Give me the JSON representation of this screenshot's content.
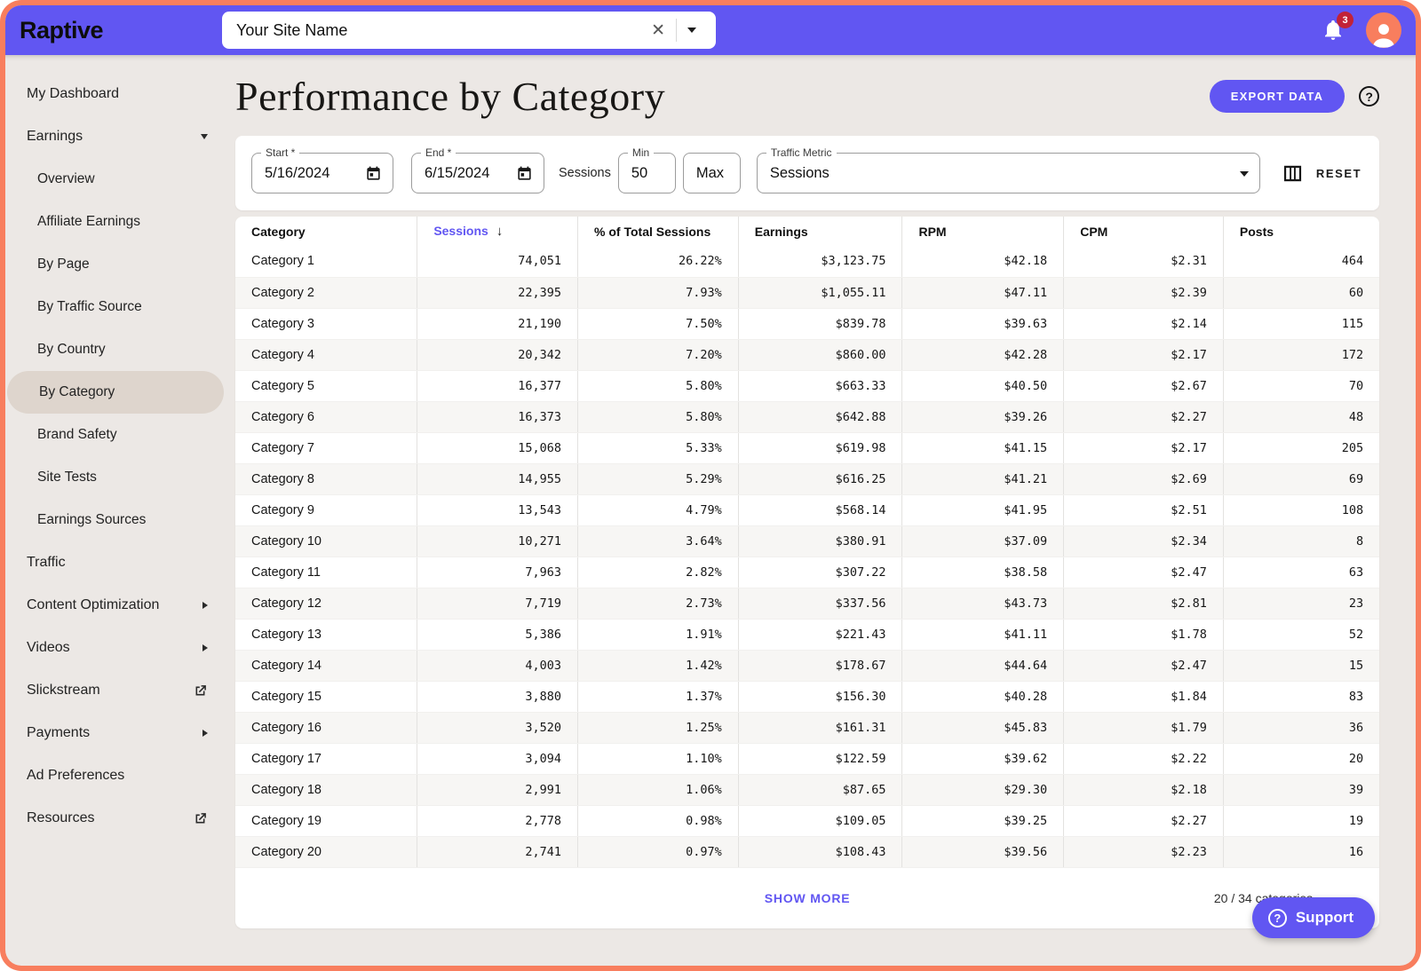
{
  "header": {
    "logo": "Raptive",
    "site_selector": {
      "value": "Your Site Name"
    },
    "notifications": {
      "count": "3"
    }
  },
  "sidebar": {
    "items": [
      {
        "label": "My Dashboard"
      },
      {
        "label": "Earnings",
        "icon": "caret-down"
      },
      {
        "label": "Overview",
        "indent": true
      },
      {
        "label": "Affiliate Earnings",
        "indent": true
      },
      {
        "label": "By Page",
        "indent": true
      },
      {
        "label": "By Traffic Source",
        "indent": true
      },
      {
        "label": "By Country",
        "indent": true
      },
      {
        "label": "By Category",
        "indent": true,
        "selected": true
      },
      {
        "label": "Brand Safety",
        "indent": true
      },
      {
        "label": "Site Tests",
        "indent": true
      },
      {
        "label": "Earnings Sources",
        "indent": true
      },
      {
        "label": "Traffic"
      },
      {
        "label": "Content Optimization",
        "icon": "chevron-right"
      },
      {
        "label": "Videos",
        "icon": "chevron-right"
      },
      {
        "label": "Slickstream",
        "icon": "external-link"
      },
      {
        "label": "Payments",
        "icon": "chevron-right"
      },
      {
        "label": "Ad Preferences"
      },
      {
        "label": "Resources",
        "icon": "external-link"
      }
    ]
  },
  "main": {
    "title": "Performance by Category",
    "export_button": "EXPORT DATA",
    "filters": {
      "start": {
        "label": "Start *",
        "value": "5/16/2024"
      },
      "end": {
        "label": "End *",
        "value": "6/15/2024"
      },
      "sessions_label": "Sessions",
      "min": {
        "label": "Min",
        "value": "50"
      },
      "max": {
        "placeholder": "Max"
      },
      "traffic_metric": {
        "label": "Traffic Metric",
        "value": "Sessions"
      },
      "reset_label": "RESET"
    },
    "table": {
      "columns": [
        {
          "label": "Category"
        },
        {
          "label": "Sessions",
          "sorted": true,
          "sort_icon": "arrow-down"
        },
        {
          "label": "% of Total Sessions"
        },
        {
          "label": "Earnings"
        },
        {
          "label": "RPM"
        },
        {
          "label": "CPM"
        },
        {
          "label": "Posts"
        }
      ],
      "rows": [
        [
          "Category 1",
          "74,051",
          "26.22%",
          "$3,123.75",
          "$42.18",
          "$2.31",
          "464"
        ],
        [
          "Category 2",
          "22,395",
          "7.93%",
          "$1,055.11",
          "$47.11",
          "$2.39",
          "60"
        ],
        [
          "Category 3",
          "21,190",
          "7.50%",
          "$839.78",
          "$39.63",
          "$2.14",
          "115"
        ],
        [
          "Category 4",
          "20,342",
          "7.20%",
          "$860.00",
          "$42.28",
          "$2.17",
          "172"
        ],
        [
          "Category 5",
          "16,377",
          "5.80%",
          "$663.33",
          "$40.50",
          "$2.67",
          "70"
        ],
        [
          "Category 6",
          "16,373",
          "5.80%",
          "$642.88",
          "$39.26",
          "$2.27",
          "48"
        ],
        [
          "Category 7",
          "15,068",
          "5.33%",
          "$619.98",
          "$41.15",
          "$2.17",
          "205"
        ],
        [
          "Category 8",
          "14,955",
          "5.29%",
          "$616.25",
          "$41.21",
          "$2.69",
          "69"
        ],
        [
          "Category 9",
          "13,543",
          "4.79%",
          "$568.14",
          "$41.95",
          "$2.51",
          "108"
        ],
        [
          "Category 10",
          "10,271",
          "3.64%",
          "$380.91",
          "$37.09",
          "$2.34",
          "8"
        ],
        [
          "Category 11",
          "7,963",
          "2.82%",
          "$307.22",
          "$38.58",
          "$2.47",
          "63"
        ],
        [
          "Category 12",
          "7,719",
          "2.73%",
          "$337.56",
          "$43.73",
          "$2.81",
          "23"
        ],
        [
          "Category 13",
          "5,386",
          "1.91%",
          "$221.43",
          "$41.11",
          "$1.78",
          "52"
        ],
        [
          "Category 14",
          "4,003",
          "1.42%",
          "$178.67",
          "$44.64",
          "$2.47",
          "15"
        ],
        [
          "Category 15",
          "3,880",
          "1.37%",
          "$156.30",
          "$40.28",
          "$1.84",
          "83"
        ],
        [
          "Category 16",
          "3,520",
          "1.25%",
          "$161.31",
          "$45.83",
          "$1.79",
          "36"
        ],
        [
          "Category 17",
          "3,094",
          "1.10%",
          "$122.59",
          "$39.62",
          "$2.22",
          "20"
        ],
        [
          "Category 18",
          "2,991",
          "1.06%",
          "$87.65",
          "$29.30",
          "$2.18",
          "39"
        ],
        [
          "Category 19",
          "2,778",
          "0.98%",
          "$109.05",
          "$39.25",
          "$2.27",
          "19"
        ],
        [
          "Category 20",
          "2,741",
          "0.97%",
          "$108.43",
          "$39.56",
          "$2.23",
          "16"
        ]
      ]
    },
    "footer": {
      "show_more": "SHOW MORE",
      "count_text": "20 / 34 categories"
    }
  },
  "support": {
    "label": "Support"
  },
  "colors": {
    "accent_purple": "#6156F2",
    "frame_orange": "#F87E5E",
    "badge_red": "#C22237",
    "selected_pill": "#DED5CD",
    "background": "#ECE8E5"
  }
}
